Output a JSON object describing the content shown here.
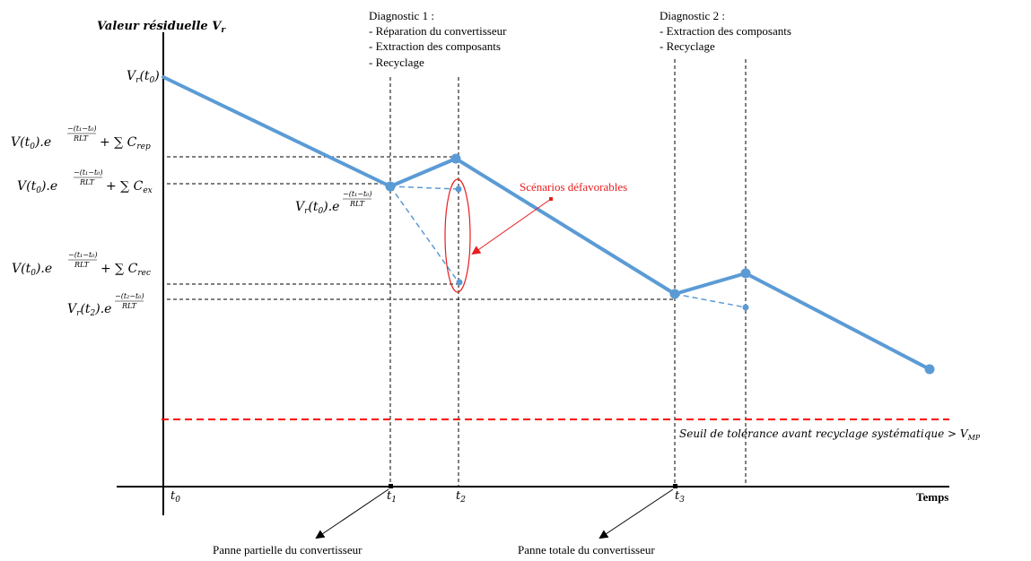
{
  "y_axis": {
    "label": "Valeur résiduelle",
    "label_sub": "V",
    "label_sub_index": "r"
  },
  "x_axis": {
    "label": "Temps"
  },
  "ticks": {
    "t0": {
      "base": "t",
      "sub": "0"
    },
    "t1": {
      "base": "t",
      "sub": "1"
    },
    "t2": {
      "base": "t",
      "sub": "2"
    },
    "t3": {
      "base": "t",
      "sub": "3"
    }
  },
  "diagnostic1": {
    "title": "Diagnostic  1 :",
    "items": [
      "- Réparation  du convertisseur",
      "- Extraction  des composants",
      "- Recyclage"
    ]
  },
  "diagnostic2": {
    "title": "Diagnostic  2 :",
    "items": [
      "- Extraction  des composants",
      "- Recyclage"
    ]
  },
  "annotations": {
    "unfavorable": "Scénarios  défavorables",
    "threshold": "Seuil de tolérance avant recyclage systématique > V",
    "threshold_sub": "MP",
    "partial_failure": "Panne partielle  du convertisseur",
    "total_failure": "Panne totale  du convertisseur"
  },
  "formulas": {
    "vr_t0": {
      "v": "V",
      "vsub": "r",
      "arg": "(t",
      "argsub": "0",
      "close": ")"
    },
    "rep": {
      "pre": "V(t",
      "presub": "0",
      "mid": ").e",
      "exp_num": "−(t₁−t₀)",
      "exp_den": "RLT",
      "sum": "+ ∑ C",
      "csub": "rep"
    },
    "ex": {
      "pre": "V(t",
      "presub": "0",
      "mid": ").e",
      "exp_num": "−(t₁−t₀)",
      "exp_den": "RLT",
      "sum": "+ ∑ C",
      "csub": "ex"
    },
    "rec": {
      "pre": "V(t",
      "presub": "0",
      "mid": ").e",
      "exp_num": "−(t₁−t₀)",
      "exp_den": "RLT",
      "sum": "+ ∑ C",
      "csub": "rec"
    },
    "vr_t2": {
      "pre": "V",
      "presub": "r",
      "mid": "(t",
      "midsub": "2",
      "end": ").e",
      "exp_num": "−(t₂−t₀)",
      "exp_den": "RLT"
    },
    "vr_t1_inline": {
      "pre": "V",
      "presub": "r",
      "mid": "(t",
      "midsub": "0",
      "end": ").e",
      "exp_num": "−(t₁−t₀)",
      "exp_den": "RLT"
    }
  },
  "colors": {
    "curve": "#5b9bd5",
    "threshold": "#ff0000",
    "annotation": "#e81e1e",
    "guides": "#000000"
  }
}
